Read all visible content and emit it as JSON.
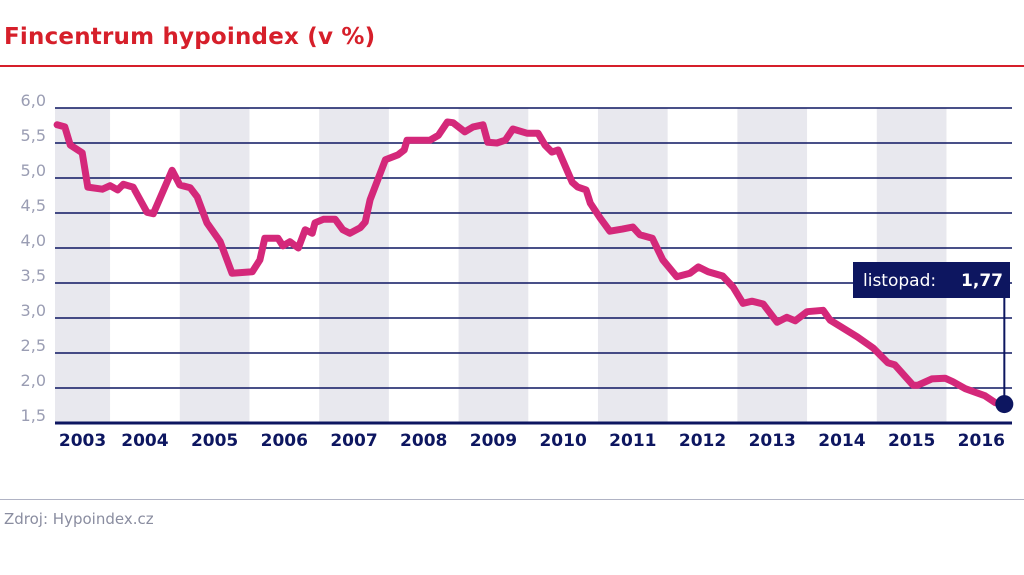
{
  "source": "Zdroj: Hypoindex.cz",
  "chart_data": {
    "type": "line",
    "title": "Fincentrum hypoindex (v %)",
    "xlabel": "",
    "ylabel": "",
    "xlim": [
      2003.21,
      2016.94
    ],
    "ylim": [
      1.5,
      6.0
    ],
    "yticks": [
      1.5,
      2.0,
      2.5,
      3.0,
      3.5,
      4.0,
      4.5,
      5.0,
      5.5,
      6.0
    ],
    "ytick_labels": [
      "1,5",
      "2,0",
      "2,5",
      "3,0",
      "3,5",
      "4,0",
      "4,5",
      "5,0",
      "5,5",
      "6,0"
    ],
    "xtick_labels": [
      "2003",
      "2004",
      "2005",
      "2006",
      "2007",
      "2008",
      "2009",
      "2010",
      "2011",
      "2012",
      "2013",
      "2014",
      "2015",
      "2016"
    ],
    "grid": true,
    "alternating_year_bands": true,
    "colors": {
      "line": "#d4287a",
      "axis": "#0d1660",
      "band": "#e8e8ee",
      "tick_label_y": "#9a9db3",
      "tick_label_x": "#0d1660"
    },
    "series": [
      {
        "name": "Fincentrum hypoindex",
        "x": [
          2003.24,
          2003.35,
          2003.43,
          2003.6,
          2003.68,
          2003.89,
          2004.0,
          2004.11,
          2004.19,
          2004.33,
          2004.53,
          2004.62,
          2004.89,
          2005.0,
          2005.15,
          2005.25,
          2005.39,
          2005.58,
          2005.75,
          2006.04,
          2006.15,
          2006.22,
          2006.41,
          2006.48,
          2006.58,
          2006.7,
          2006.8,
          2006.9,
          2006.94,
          2007.06,
          2007.23,
          2007.34,
          2007.44,
          2007.59,
          2007.66,
          2007.73,
          2007.95,
          2008.13,
          2008.22,
          2008.26,
          2008.35,
          2008.59,
          2008.71,
          2008.84,
          2008.92,
          2009.09,
          2009.21,
          2009.35,
          2009.42,
          2009.55,
          2009.67,
          2009.78,
          2009.98,
          2010.14,
          2010.24,
          2010.34,
          2010.43,
          2010.63,
          2010.71,
          2010.83,
          2010.89,
          2011.03,
          2011.17,
          2011.35,
          2011.5,
          2011.6,
          2011.78,
          2011.93,
          2012.13,
          2012.32,
          2012.44,
          2012.58,
          2012.79,
          2012.94,
          2013.08,
          2013.21,
          2013.37,
          2013.57,
          2013.71,
          2013.83,
          2014.0,
          2014.23,
          2014.33,
          2014.72,
          2014.95,
          2015.16,
          2015.26,
          2015.52,
          2015.59,
          2015.79,
          2015.98,
          2016.09,
          2016.27,
          2016.55,
          2016.7,
          2016.83
        ],
        "values": [
          5.76,
          5.73,
          5.47,
          5.36,
          4.87,
          4.84,
          4.89,
          4.83,
          4.91,
          4.87,
          4.51,
          4.49,
          5.11,
          4.9,
          4.86,
          4.73,
          4.36,
          4.09,
          3.64,
          3.66,
          3.83,
          4.14,
          4.14,
          4.03,
          4.09,
          4.0,
          4.26,
          4.21,
          4.36,
          4.41,
          4.41,
          4.26,
          4.21,
          4.29,
          4.37,
          4.69,
          5.26,
          5.33,
          5.4,
          5.54,
          5.54,
          5.54,
          5.61,
          5.8,
          5.79,
          5.66,
          5.73,
          5.76,
          5.51,
          5.5,
          5.54,
          5.7,
          5.64,
          5.64,
          5.47,
          5.37,
          5.4,
          4.94,
          4.87,
          4.83,
          4.64,
          4.43,
          4.24,
          4.27,
          4.3,
          4.19,
          4.14,
          3.83,
          3.59,
          3.64,
          3.73,
          3.66,
          3.6,
          3.44,
          3.21,
          3.24,
          3.2,
          2.94,
          3.01,
          2.96,
          3.09,
          3.11,
          2.97,
          2.73,
          2.57,
          2.36,
          2.33,
          2.04,
          2.04,
          2.13,
          2.14,
          2.09,
          1.99,
          1.89,
          1.79,
          1.77
        ]
      }
    ],
    "annotation": {
      "label": "listopad:",
      "value": "1,77",
      "x": 2016.83,
      "y": 1.77
    }
  }
}
